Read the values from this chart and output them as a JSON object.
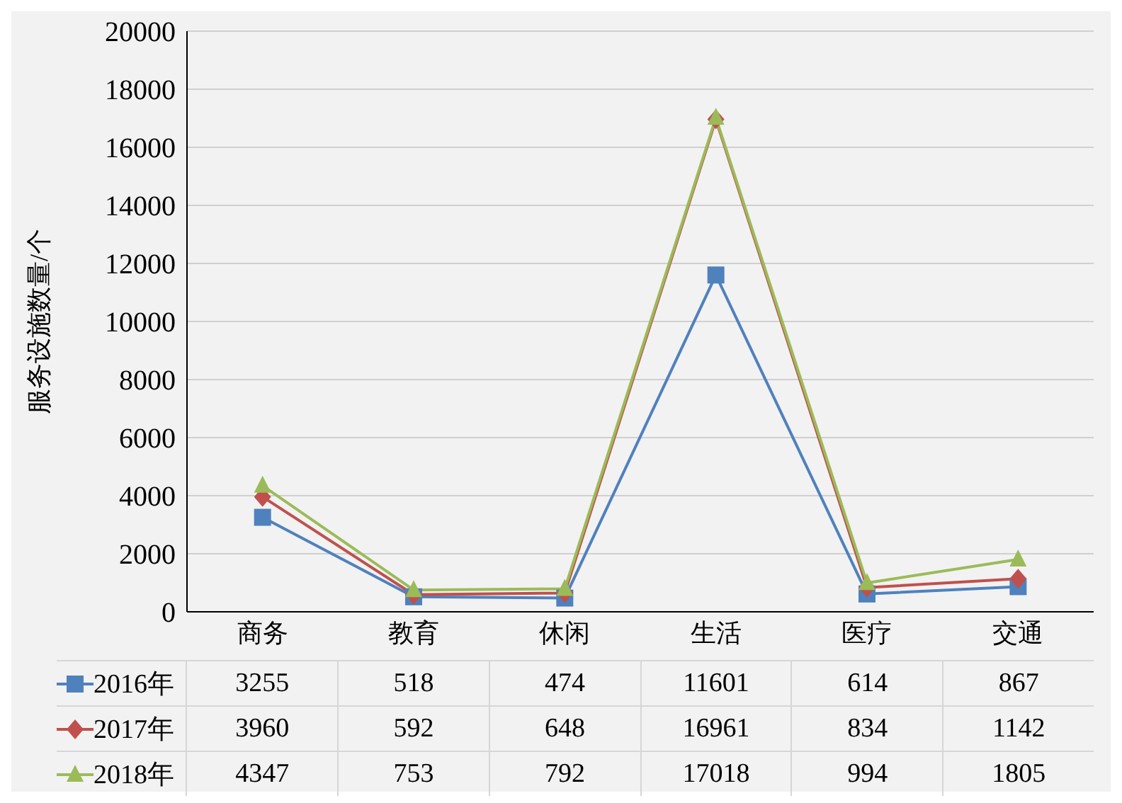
{
  "chart_data": {
    "type": "line",
    "ylabel": "服务设施数量/个",
    "categories": [
      "商务",
      "教育",
      "休闲",
      "生活",
      "医疗",
      "交通"
    ],
    "series": [
      {
        "name": "2016年",
        "color": "#4f81bd",
        "marker": "square",
        "values": [
          3255,
          518,
          474,
          11601,
          614,
          867
        ]
      },
      {
        "name": "2017年",
        "color": "#c0504d",
        "marker": "diamond",
        "values": [
          3960,
          592,
          648,
          16961,
          834,
          1142
        ]
      },
      {
        "name": "2018年",
        "color": "#9bbb59",
        "marker": "triangle",
        "values": [
          4347,
          753,
          792,
          17018,
          994,
          1805
        ]
      }
    ],
    "ylim": [
      0,
      20000
    ],
    "yticks": [
      0,
      2000,
      4000,
      6000,
      8000,
      10000,
      12000,
      14000,
      16000,
      18000,
      20000
    ],
    "grid": "y",
    "legend": "bottom left",
    "data_labels": true
  }
}
